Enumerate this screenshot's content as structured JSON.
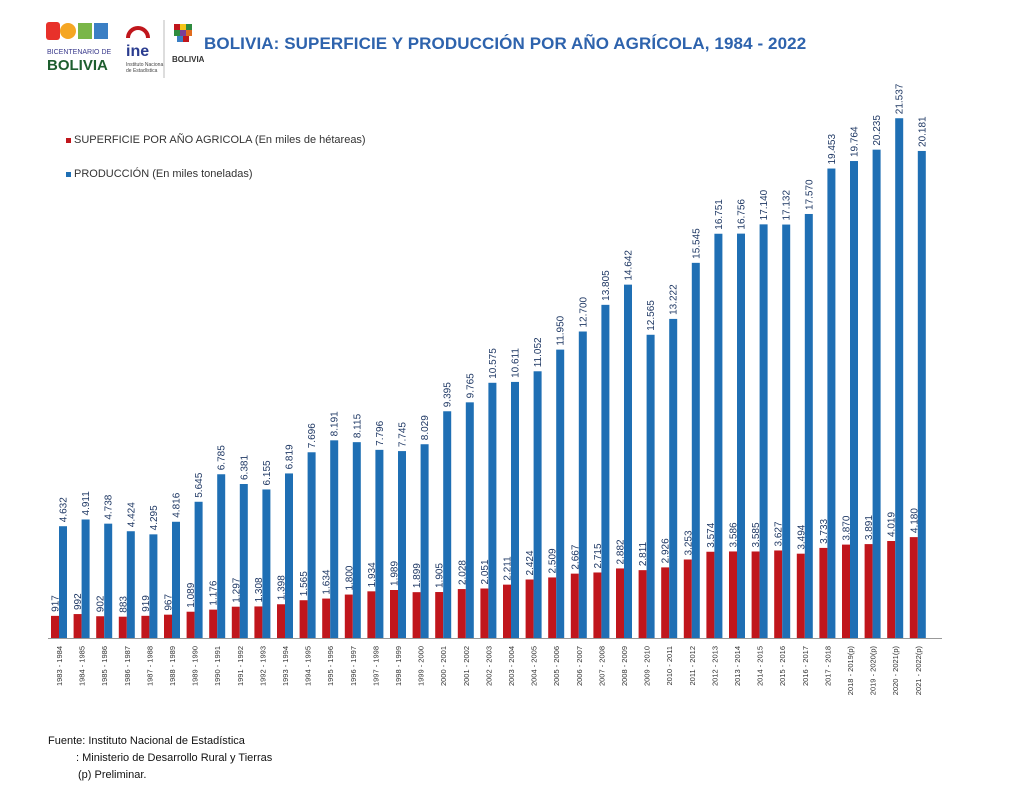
{
  "header": {
    "title": "BOLIVIA: SUPERFICIE Y PRODUCCIÓN POR AÑO AGRÍCOLA, 1984  - 2022",
    "logo_bicentenario_top": "BICENTENARIO DE",
    "logo_bicentenario_main": "BOLIVIA",
    "logo_ine": "ine",
    "logo_ine_sub1": "Instituto Nacional",
    "logo_ine_sub2": "de Estadística",
    "logo_estado": "BOLIVIA"
  },
  "legend": {
    "superficie": "SUPERFICIE  POR AÑO AGRICOLA (En  miles de hétareas)",
    "produccion": "PRODUCCIÓN (En miles toneladas)"
  },
  "colors": {
    "superficie": "#c0161c",
    "produccion": "#1f6fb4",
    "title": "#2e63ad",
    "label": "#1f3864"
  },
  "chart_data": {
    "type": "bar",
    "title": "BOLIVIA: SUPERFICIE Y PRODUCCIÓN POR AÑO AGRÍCOLA, 1984  - 2022",
    "categories": [
      "1983 - 1984",
      "1984 - 1985",
      "1985 - 1986",
      "1986 - 1987",
      "1987 - 1988",
      "1988 - 1989",
      "1989 - 1990",
      "1990 - 1991",
      "1991 - 1992",
      "1992 - 1993",
      "1993 - 1994",
      "1994 - 1995",
      "1995 - 1996",
      "1996 - 1997",
      "1997 - 1998",
      "1998 - 1999",
      "1999 - 2000",
      "2000 - 2001",
      "2001 - 2002",
      "2002 - 2003",
      "2003 - 2004",
      "2004 - 2005",
      "2005 - 2006",
      "2006 - 2007",
      "2007 - 2008",
      "2008 - 2009",
      "2009 - 2010",
      "2010 - 2011",
      "2011 - 2012",
      "2012 - 2013",
      "2013 - 2014",
      "2014 - 2015",
      "2015 - 2016",
      "2016 - 2017",
      "2017 - 2018",
      "2018 - 2019(p)",
      "2019 - 2020(p)",
      "2020 - 2021(p)",
      "2021 - 2022(p)"
    ],
    "series": [
      {
        "name": "SUPERFICIE  POR AÑO AGRICOLA (En  miles de hétareas)",
        "values": [
          917,
          992,
          902,
          883,
          919,
          967,
          1089,
          1176,
          1297,
          1308,
          1398,
          1565,
          1634,
          1800,
          1934,
          1989,
          1899,
          1905,
          2028,
          2051,
          2211,
          2424,
          2509,
          2667,
          2715,
          2882,
          2811,
          2926,
          3253,
          3574,
          3586,
          3585,
          3627,
          3494,
          3733,
          3870,
          3891,
          4019,
          4180
        ],
        "labels": [
          "917",
          "992",
          "902",
          "883",
          "919",
          "967",
          "1.089",
          "1.176",
          "1.297",
          "1.308",
          "1.398",
          "1.565",
          "1.634",
          "1.800",
          "1.934",
          "1.989",
          "1.899",
          "1.905",
          "2.028",
          "2.051",
          "2.211",
          "2.424",
          "2.509",
          "2.667",
          "2.715",
          "2.882",
          "2.811",
          "2.926",
          "3.253",
          "3.574",
          "3.586",
          "3.585",
          "3.627",
          "3.494",
          "3.733",
          "3.870",
          "3.891",
          "4.019",
          "4.180"
        ]
      },
      {
        "name": "PRODUCCIÓN (En miles toneladas)",
        "values": [
          4632,
          4911,
          4738,
          4424,
          4295,
          4816,
          5645,
          6785,
          6381,
          6155,
          6819,
          7696,
          8191,
          8115,
          7796,
          7745,
          8029,
          9395,
          9765,
          10575,
          10611,
          11052,
          11950,
          12700,
          13805,
          14642,
          12565,
          13222,
          15545,
          16751,
          16756,
          17140,
          17132,
          17570,
          19453,
          19764,
          20235,
          21537,
          20181
        ],
        "labels": [
          "4.632",
          "4.911",
          "4.738",
          "4.424",
          "4.295",
          "4.816",
          "5.645",
          "6.785",
          "6.381",
          "6.155",
          "6.819",
          "7.696",
          "8.191",
          "8.115",
          "7.796",
          "7.745",
          "8.029",
          "9.395",
          "9.765",
          "10.575",
          "10.611",
          "11.052",
          "11.950",
          "12.700",
          "13.805",
          "14.642",
          "12.565",
          "13.222",
          "15.545",
          "16.751",
          "16.756",
          "17.140",
          "17.132",
          "17.570",
          "19.453",
          "19.764",
          "20.235",
          "21.537",
          "20.181"
        ]
      }
    ],
    "ylim": [
      0,
      22500
    ],
    "grid": false,
    "legend_position": "top-left"
  },
  "source": {
    "line1": "Fuente: Instituto Nacional de Estadística",
    "line2": ":  Ministerio de Desarrollo Rural y Tierras",
    "line3": "(p) Preliminar."
  }
}
